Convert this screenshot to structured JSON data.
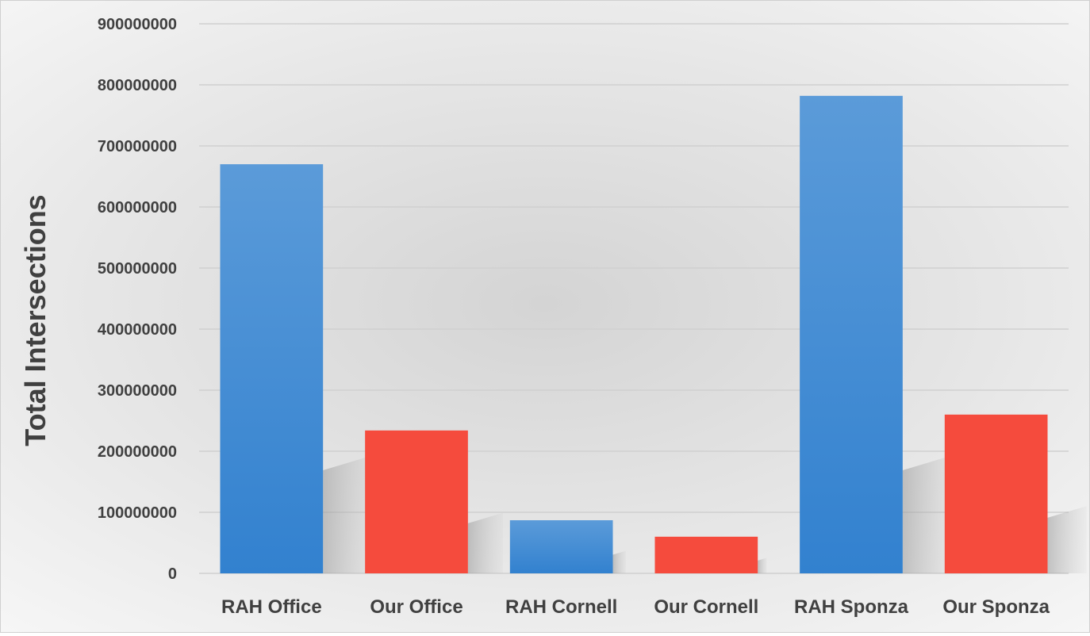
{
  "chart_data": {
    "type": "bar",
    "title": "",
    "xlabel": "",
    "ylabel": "Total Intersections",
    "categories": [
      "RAH Office",
      "Our Office",
      "RAH Cornell",
      "Our Cornell",
      "RAH Sponza",
      "Our Sponza"
    ],
    "values": [
      670000000,
      234000000,
      87000000,
      60000000,
      782000000,
      260000000
    ],
    "bar_colors": [
      "#3f8ad4",
      "#f54b3d",
      "#3f8ad4",
      "#f54b3d",
      "#3f8ad4",
      "#f54b3d"
    ],
    "yticks": [
      "0",
      "100000000",
      "200000000",
      "300000000",
      "400000000",
      "500000000",
      "600000000",
      "700000000",
      "800000000",
      "900000000"
    ],
    "ylim": [
      0,
      900000000
    ],
    "grid": true,
    "legend": "none"
  }
}
